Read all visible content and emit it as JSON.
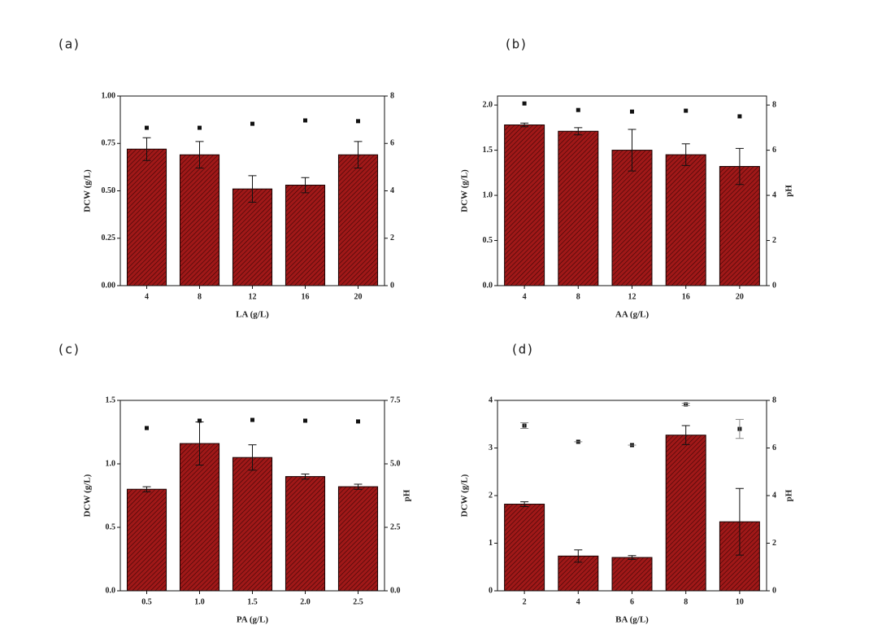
{
  "chart_data": [
    {
      "type": "bar",
      "panel_label": "(a)",
      "xlabel": "LA (g/L)",
      "ylabel": "DCW (g/L)",
      "categories": [
        "4",
        "8",
        "12",
        "16",
        "20"
      ],
      "ylim": [
        0,
        1
      ],
      "yticks": [
        {
          "value": 0,
          "label": "0.00"
        },
        {
          "value": 0.25,
          "label": "0.25"
        },
        {
          "value": 0.5,
          "label": "0.50"
        },
        {
          "value": 0.75,
          "label": "0.75"
        },
        {
          "value": 1,
          "label": "1.00"
        }
      ],
      "y2lim": [
        0,
        8
      ],
      "y2ticks": [
        0,
        2,
        4,
        6,
        8
      ],
      "series": [
        {
          "type": "bar",
          "color": "#a01818",
          "values": [
            0.72,
            0.69,
            0.51,
            0.53,
            0.69
          ],
          "errors": [
            0.06,
            0.07,
            0.07,
            0.04,
            0.07
          ]
        },
        {
          "type": "scatter",
          "axis": "y2",
          "color": "#111111",
          "values": [
            6.66,
            6.66,
            6.83,
            6.97,
            6.94
          ]
        }
      ]
    },
    {
      "type": "bar",
      "panel_label": "(b)",
      "xlabel": "AA (g/L)",
      "ylabel": "DCW (g/L)",
      "y2label": "pH",
      "categories": [
        "4",
        "8",
        "12",
        "16",
        "20"
      ],
      "ylim": [
        0,
        2.1
      ],
      "yticks": [
        {
          "value": 0,
          "label": "0.0"
        },
        0.5,
        {
          "value": 1,
          "label": "1.0"
        },
        1.5,
        {
          "value": 2,
          "label": "2.0"
        }
      ],
      "y2lim": [
        0,
        8.4
      ],
      "y2ticks": [
        0,
        2,
        4,
        6,
        8
      ],
      "series": [
        {
          "type": "bar",
          "color": "#a01818",
          "values": [
            1.78,
            1.71,
            1.5,
            1.45,
            1.32
          ],
          "errors": [
            0.02,
            0.04,
            0.23,
            0.12,
            0.2
          ]
        },
        {
          "type": "scatter",
          "axis": "y2",
          "color": "#111111",
          "values": [
            8.07,
            7.78,
            7.71,
            7.75,
            7.5
          ]
        }
      ]
    },
    {
      "type": "bar",
      "panel_label": "(c)",
      "xlabel": "PA (g/L)",
      "ylabel": "DCW (g/L)",
      "y2label": "pH",
      "categories": [
        "0.5",
        "1.0",
        "1.5",
        "2.0",
        "2.5"
      ],
      "ylim": [
        0,
        1.5
      ],
      "yticks": [
        {
          "value": 0,
          "label": "0.0"
        },
        0.5,
        {
          "value": 1,
          "label": "1.0"
        },
        1.5
      ],
      "y2lim": [
        0,
        7.5
      ],
      "y2ticks": [
        {
          "value": 0,
          "label": "0.0"
        },
        2.5,
        {
          "value": 5,
          "label": "5.0"
        },
        7.5
      ],
      "series": [
        {
          "type": "bar",
          "color": "#a01818",
          "values": [
            0.8,
            1.16,
            1.05,
            0.9,
            0.82
          ],
          "errors": [
            0.02,
            0.17,
            0.1,
            0.02,
            0.02
          ]
        },
        {
          "type": "scatter",
          "axis": "y2",
          "color": "#111111",
          "values": [
            6.41,
            6.7,
            6.73,
            6.7,
            6.67
          ]
        }
      ]
    },
    {
      "type": "bar",
      "panel_label": "(d)",
      "xlabel": "BA (g/L)",
      "ylabel": "DCW (g/L)",
      "y2label": "pH",
      "categories": [
        "2",
        "4",
        "6",
        "8",
        "10"
      ],
      "ylim": [
        0,
        4
      ],
      "yticks": [
        0,
        1,
        2,
        3,
        4
      ],
      "y2lim": [
        0,
        8
      ],
      "y2ticks": [
        0,
        2,
        4,
        6,
        8
      ],
      "series": [
        {
          "type": "bar",
          "color": "#a01818",
          "values": [
            1.82,
            0.73,
            0.7,
            3.27,
            1.45
          ],
          "errors": [
            0.05,
            0.13,
            0.04,
            0.2,
            0.7
          ]
        },
        {
          "type": "scatter",
          "axis": "y2",
          "color": "#111111",
          "values": [
            6.94,
            6.26,
            6.12,
            7.83,
            6.8
          ],
          "errors": [
            0.12,
            0,
            0,
            0.05,
            0.4
          ]
        }
      ]
    }
  ]
}
